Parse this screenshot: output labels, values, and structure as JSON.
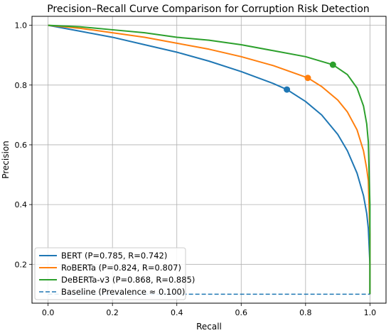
{
  "chart_data": {
    "type": "line",
    "title": "Precision–Recall Curve Comparison for Corruption Risk Detection",
    "xlabel": "Recall",
    "ylabel": "Precision",
    "xlim": [
      -0.05,
      1.05
    ],
    "ylim": [
      0.07,
      1.03
    ],
    "xticks": [
      0.0,
      0.2,
      0.4,
      0.6,
      0.8,
      1.0
    ],
    "xtick_labels": [
      "0.0",
      "0.2",
      "0.4",
      "0.6",
      "0.8",
      "1.0"
    ],
    "yticks": [
      0.2,
      0.4,
      0.6,
      0.8,
      1.0
    ],
    "ytick_labels": [
      "0.2",
      "0.4",
      "0.6",
      "0.8",
      "1.0"
    ],
    "grid": true,
    "legend_position": "lower-left",
    "series": [
      {
        "name": "BERT (P=0.785, R=0.742)",
        "color": "#1f77b4",
        "style": "solid",
        "x": [
          0.0,
          0.1,
          0.2,
          0.3,
          0.4,
          0.5,
          0.6,
          0.7,
          0.742,
          0.8,
          0.85,
          0.9,
          0.93,
          0.96,
          0.98,
          0.99,
          0.995,
          1.0,
          1.0
        ],
        "y": [
          1.0,
          0.98,
          0.96,
          0.935,
          0.91,
          0.88,
          0.845,
          0.805,
          0.785,
          0.745,
          0.7,
          0.635,
          0.58,
          0.505,
          0.43,
          0.37,
          0.32,
          0.2,
          0.1
        ],
        "marker": {
          "x": 0.742,
          "y": 0.785
        }
      },
      {
        "name": "RoBERTa (P=0.824, R=0.807)",
        "color": "#ff7f0e",
        "style": "solid",
        "x": [
          0.0,
          0.1,
          0.2,
          0.3,
          0.4,
          0.5,
          0.6,
          0.7,
          0.807,
          0.85,
          0.9,
          0.93,
          0.96,
          0.98,
          0.99,
          0.995,
          1.0,
          1.0
        ],
        "y": [
          1.0,
          0.99,
          0.975,
          0.96,
          0.94,
          0.92,
          0.895,
          0.865,
          0.824,
          0.795,
          0.75,
          0.71,
          0.65,
          0.58,
          0.52,
          0.48,
          0.3,
          0.1
        ],
        "marker": {
          "x": 0.807,
          "y": 0.824
        }
      },
      {
        "name": "DeBERTa-v3 (P=0.868, R=0.885)",
        "color": "#2ca02c",
        "style": "solid",
        "x": [
          0.0,
          0.1,
          0.2,
          0.3,
          0.4,
          0.5,
          0.6,
          0.7,
          0.8,
          0.885,
          0.93,
          0.96,
          0.98,
          0.99,
          0.995,
          1.0,
          1.0
        ],
        "y": [
          1.0,
          0.995,
          0.985,
          0.975,
          0.96,
          0.95,
          0.935,
          0.915,
          0.895,
          0.868,
          0.835,
          0.79,
          0.73,
          0.67,
          0.61,
          0.4,
          0.1
        ],
        "marker": {
          "x": 0.885,
          "y": 0.868
        }
      },
      {
        "name": "Baseline (Prevalence ≈ 0.100)",
        "color": "#1f77b4",
        "style": "dashed",
        "x": [
          0.0,
          1.0
        ],
        "y": [
          0.1,
          0.1
        ]
      }
    ]
  }
}
